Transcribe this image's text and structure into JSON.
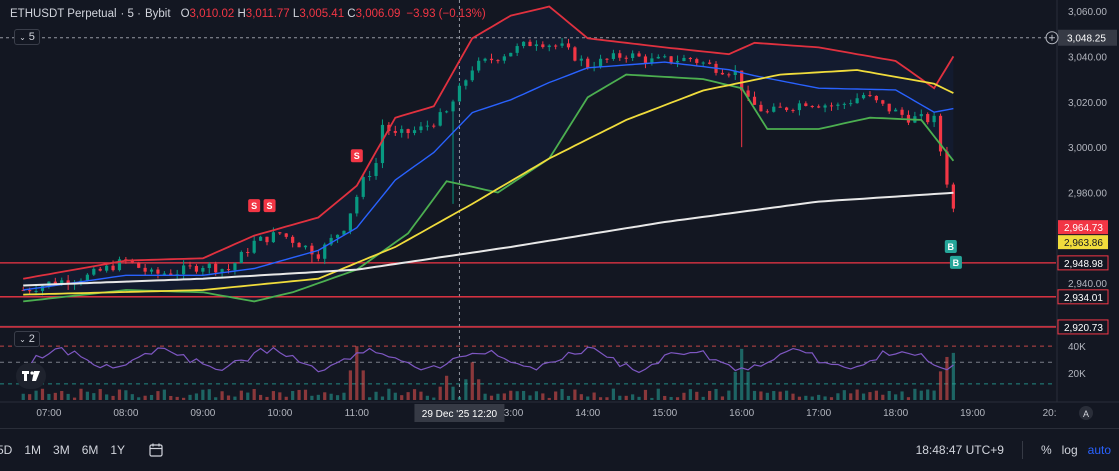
{
  "legend": {
    "symbol": "ETHUSDT Perpetual",
    "interval": "· 5 ·",
    "exchange": "Bybit",
    "o_key": "O",
    "o_val": "3,010.02",
    "h_key": "H",
    "h_val": "3,011.77",
    "l_key": "L",
    "l_val": "3,005.41",
    "c_key": "C",
    "c_val": "3,006.09",
    "change": "−3.93 (−0.13%)"
  },
  "main_indicator_toggle": {
    "count": "5",
    "chevron": "⌄"
  },
  "sub_indicator_toggle": {
    "count": "2",
    "chevron": "⌄"
  },
  "price_axis": {
    "ticks": [
      3060,
      3040,
      3020,
      3000,
      2980,
      2940
    ],
    "tick_labels": [
      "3,060.00",
      "3,040.00",
      "3,020.00",
      "3,000.00",
      "2,980.00",
      "2,940.00"
    ],
    "crosshair_label": "3,048.25",
    "horizontal_lines": [
      {
        "price": 2948.98,
        "label": "2,948.98"
      },
      {
        "price": 2934.01,
        "label": "2,934.01"
      },
      {
        "price": 2920.73,
        "label": "2,920.73"
      }
    ],
    "last_price_label": "2,964.73",
    "ma_price_label": "2,963.86"
  },
  "volume_axis": {
    "ticks": [
      40000,
      20000
    ],
    "tick_labels": [
      "40K",
      "20K"
    ]
  },
  "time_axis": {
    "labels": [
      "07:00",
      "08:00",
      "09:00",
      "10:00",
      "11:00",
      "13:00",
      "14:00",
      "15:00",
      "16:00",
      "17:00",
      "18:00",
      "19:00",
      "20:"
    ],
    "crosshair_label": "29 Dec '25   12:20"
  },
  "signals": {
    "sell": [
      "S",
      "S",
      "S"
    ],
    "buy": [
      "B",
      "B"
    ]
  },
  "colors": {
    "background": "#131722",
    "up": "#26a69a",
    "up_bright": "#089981",
    "down": "#f23645",
    "bb_upper": "#e0313f",
    "bb_lower": "#4caf50",
    "bb_mid": "#2962ff",
    "ma_yellow": "#f0dc3c",
    "ma_white": "#e8e8e8",
    "rsi_line": "#7e57c2",
    "label_red": "#f23645",
    "label_yellow": "#f0dc3c"
  },
  "chart_data": {
    "type": "candlestick",
    "symbol": "ETHUSDT Perpetual",
    "timeframe": "5",
    "exchange": "Bybit",
    "title": "ETHUSDT Perpetual · 5 · Bybit",
    "ylim": [
      2915,
      3062
    ],
    "price_anchors": [
      {
        "time": "06:40",
        "close": 2937
      },
      {
        "time": "07:00",
        "close": 2940
      },
      {
        "time": "07:30",
        "close": 2943
      },
      {
        "time": "08:00",
        "close": 2950
      },
      {
        "time": "08:20",
        "close": 2944
      },
      {
        "time": "08:40",
        "close": 2945
      },
      {
        "time": "09:00",
        "close": 2948
      },
      {
        "time": "09:20",
        "close": 2946
      },
      {
        "time": "09:40",
        "close": 2958
      },
      {
        "time": "10:00",
        "close": 2962
      },
      {
        "time": "10:30",
        "close": 2953
      },
      {
        "time": "10:50",
        "close": 2965
      },
      {
        "time": "11:05",
        "close": 2985
      },
      {
        "time": "11:15",
        "close": 2993
      },
      {
        "time": "11:20",
        "close": 3010
      },
      {
        "time": "11:30",
        "close": 3005
      },
      {
        "time": "11:50",
        "close": 3008
      },
      {
        "time": "12:10",
        "close": 3015
      },
      {
        "time": "12:30",
        "close": 3035
      },
      {
        "time": "12:50",
        "close": 3040
      },
      {
        "time": "13:20",
        "close": 3047
      },
      {
        "time": "13:40",
        "close": 3044
      },
      {
        "time": "14:00",
        "close": 3036
      },
      {
        "time": "14:30",
        "close": 3041
      },
      {
        "time": "14:50",
        "close": 3038
      },
      {
        "time": "15:20",
        "close": 3039
      },
      {
        "time": "15:40",
        "close": 3035
      },
      {
        "time": "15:55",
        "close": 3033
      },
      {
        "time": "16:05",
        "close": 3020
      },
      {
        "time": "16:20",
        "close": 3015
      },
      {
        "time": "16:50",
        "close": 3020
      },
      {
        "time": "17:15",
        "close": 3018
      },
      {
        "time": "17:35",
        "close": 3023
      },
      {
        "time": "17:50",
        "close": 3018
      },
      {
        "time": "18:10",
        "close": 3013
      },
      {
        "time": "18:30",
        "close": 3012
      },
      {
        "time": "18:40",
        "close": 2985
      },
      {
        "time": "18:48",
        "close": 2965
      }
    ],
    "bollinger_upper": [
      {
        "time": "06:40",
        "value": 2942
      },
      {
        "time": "08:00",
        "value": 2950
      },
      {
        "time": "09:00",
        "value": 2951
      },
      {
        "time": "09:40",
        "value": 2961
      },
      {
        "time": "10:30",
        "value": 2969
      },
      {
        "time": "11:00",
        "value": 2983
      },
      {
        "time": "11:30",
        "value": 3013
      },
      {
        "time": "12:00",
        "value": 3018
      },
      {
        "time": "12:30",
        "value": 3048
      },
      {
        "time": "13:00",
        "value": 3058
      },
      {
        "time": "13:30",
        "value": 3062
      },
      {
        "time": "14:00",
        "value": 3048
      },
      {
        "time": "15:00",
        "value": 3044
      },
      {
        "time": "15:50",
        "value": 3041
      },
      {
        "time": "16:10",
        "value": 3046
      },
      {
        "time": "17:00",
        "value": 3044
      },
      {
        "time": "18:00",
        "value": 3038
      },
      {
        "time": "18:30",
        "value": 3026
      },
      {
        "time": "18:45",
        "value": 3040
      }
    ],
    "bollinger_lower": [
      {
        "time": "06:40",
        "value": 2932
      },
      {
        "time": "08:00",
        "value": 2937
      },
      {
        "time": "09:00",
        "value": 2936
      },
      {
        "time": "09:40",
        "value": 2932
      },
      {
        "time": "10:10",
        "value": 2936
      },
      {
        "time": "11:00",
        "value": 2946
      },
      {
        "time": "11:40",
        "value": 2962
      },
      {
        "time": "12:10",
        "value": 2985
      },
      {
        "time": "12:50",
        "value": 2980
      },
      {
        "time": "13:30",
        "value": 2995
      },
      {
        "time": "14:00",
        "value": 3022
      },
      {
        "time": "14:30",
        "value": 3032
      },
      {
        "time": "15:30",
        "value": 3030
      },
      {
        "time": "16:00",
        "value": 3026
      },
      {
        "time": "16:20",
        "value": 3008
      },
      {
        "time": "17:00",
        "value": 3008
      },
      {
        "time": "17:40",
        "value": 3013
      },
      {
        "time": "18:20",
        "value": 3012
      },
      {
        "time": "18:45",
        "value": 2994
      }
    ],
    "ma_yellow": [
      {
        "time": "06:40",
        "value": 2935
      },
      {
        "time": "09:00",
        "value": 2937
      },
      {
        "time": "10:30",
        "value": 2942
      },
      {
        "time": "11:30",
        "value": 2956
      },
      {
        "time": "12:30",
        "value": 2975
      },
      {
        "time": "13:30",
        "value": 2995
      },
      {
        "time": "14:30",
        "value": 3012
      },
      {
        "time": "15:30",
        "value": 3025
      },
      {
        "time": "16:30",
        "value": 3032
      },
      {
        "time": "17:30",
        "value": 3034
      },
      {
        "time": "18:30",
        "value": 3028
      },
      {
        "time": "18:48",
        "value": 3023
      }
    ],
    "ma_white": [
      {
        "time": "06:40",
        "value": 2939
      },
      {
        "time": "09:00",
        "value": 2942
      },
      {
        "time": "11:00",
        "value": 2946
      },
      {
        "time": "13:00",
        "value": 2956
      },
      {
        "time": "15:00",
        "value": 2967
      },
      {
        "time": "17:00",
        "value": 2976
      },
      {
        "time": "18:48",
        "value": 2980
      }
    ],
    "volume_spikes": [
      {
        "time": "11:00",
        "value": 40000
      },
      {
        "time": "12:10",
        "value": 18000
      },
      {
        "time": "12:30",
        "value": 28000
      },
      {
        "time": "16:00",
        "value": 38000
      },
      {
        "time": "18:45",
        "value": 35000
      }
    ]
  }
}
